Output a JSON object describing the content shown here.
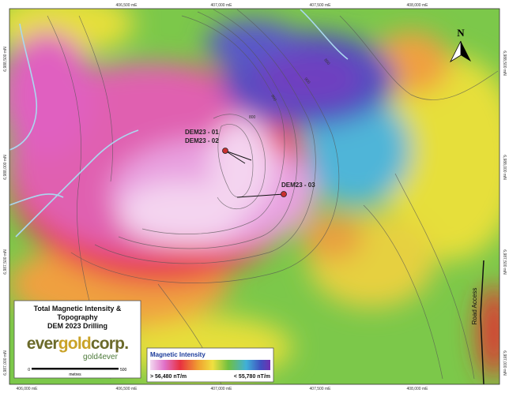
{
  "map": {
    "grid_labels": {
      "top": [
        "406,500 mE",
        "407,000 mE",
        "407,500 mE",
        "408,000 mE"
      ],
      "bottom": [
        "406,000 mE",
        "406,500 mE",
        "407,000 mE",
        "407,500 mE",
        "408,000 mE"
      ],
      "left": [
        "6,988,500 mN",
        "6,988,000 mN",
        "6,987,500 mN",
        "6,987,000 mN"
      ],
      "right": [
        "6,988,500 mN",
        "6,988,000 mN",
        "6,987,500 mN",
        "6,987,000 mN"
      ]
    },
    "contour_labels": [
      "850",
      "900",
      "900",
      "800"
    ],
    "north_arrow": "N",
    "drill_holes": [
      "DEM23 - 01",
      "DEM23 - 02",
      "DEM23 - 03"
    ],
    "road_label": "Road Access"
  },
  "title_box": {
    "title_lines": [
      "Total Magnetic Intensity &",
      "Topography",
      "DEM 2023 Drilling"
    ],
    "logo": {
      "part1": "ever",
      "part2": "gold",
      "part3": "corp.",
      "tagline": "gold4ever"
    },
    "scale_bar": {
      "start": "0",
      "end": "500",
      "unit": "metres"
    }
  },
  "legend": {
    "title": "Magnetic Intensity",
    "high": "> 56,480 nT/m",
    "low": "< 55,780 nT/m"
  }
}
